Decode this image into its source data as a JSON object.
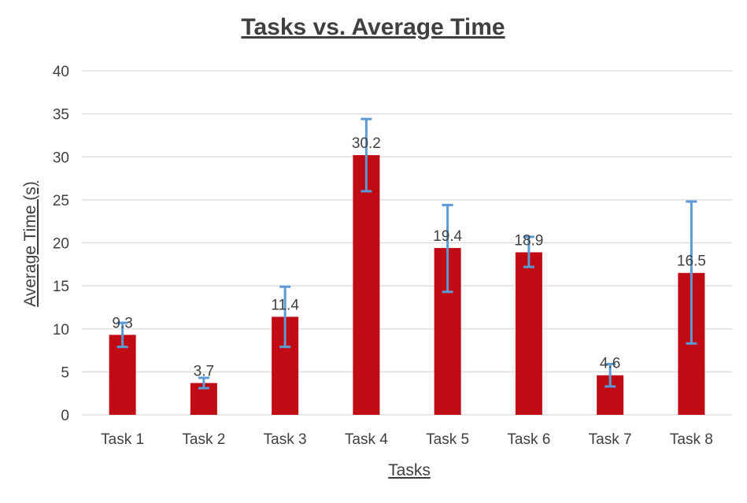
{
  "chart_data": {
    "type": "bar",
    "title": "Tasks vs. Average Time",
    "xlabel": "Tasks",
    "ylabel": "Average Time (s)",
    "categories": [
      "Task 1",
      "Task 2",
      "Task 3",
      "Task 4",
      "Task 5",
      "Task 6",
      "Task 7",
      "Task 8"
    ],
    "values": [
      9.3,
      3.7,
      11.4,
      30.2,
      19.4,
      18.9,
      4.6,
      16.5
    ],
    "value_labels": [
      "9.3",
      "3.7",
      "11.4",
      "30.2",
      "19.4",
      "18.9",
      "4.6",
      "16.5"
    ],
    "error_bars": [
      {
        "low": 7.9,
        "high": 10.7
      },
      {
        "low": 3.1,
        "high": 4.3
      },
      {
        "low": 7.9,
        "high": 14.9
      },
      {
        "low": 26.0,
        "high": 34.4
      },
      {
        "low": 14.3,
        "high": 24.4
      },
      {
        "low": 17.2,
        "high": 20.7
      },
      {
        "low": 3.3,
        "high": 5.9
      },
      {
        "low": 8.3,
        "high": 24.8
      }
    ],
    "ylim": [
      0,
      40
    ],
    "yticks": [
      0,
      5,
      10,
      15,
      20,
      25,
      30,
      35,
      40
    ],
    "grid": true,
    "legend": "none",
    "colors": {
      "bar": "#C00A14",
      "error_bar": "#5B9BD5",
      "grid": "#D9D9D9",
      "text": "#404040"
    }
  }
}
